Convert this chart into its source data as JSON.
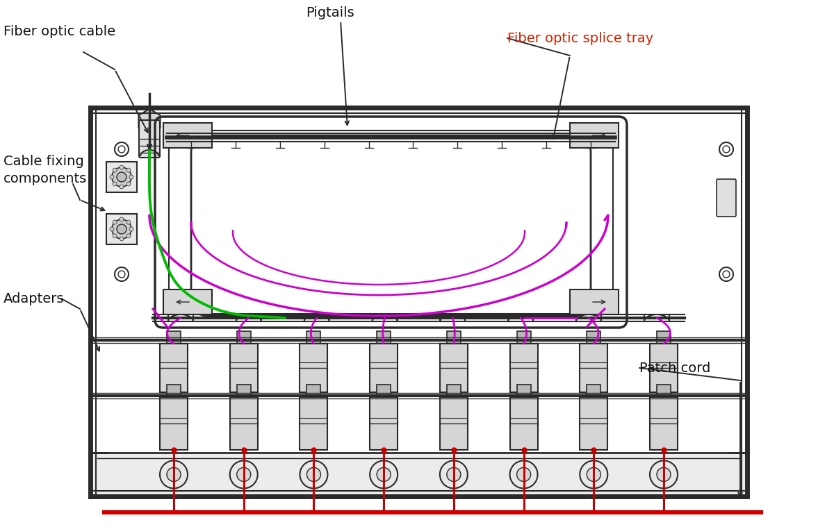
{
  "bg_color": "#ffffff",
  "lc": "#2a2a2a",
  "mc": "#cc00cc",
  "gc": "#00bb00",
  "rc": "#cc0000",
  "figsize": [
    12.0,
    7.62
  ],
  "dpi": 100,
  "labels": {
    "fiber_optic_cable": "Fiber optic cable",
    "pigtails": "Pigtails",
    "splice_tray": "Fiber optic splice tray",
    "cable_fixing": "Cable fixing\ncomponents",
    "adapters": "Adapters",
    "patch_cord": "Patch cord"
  }
}
